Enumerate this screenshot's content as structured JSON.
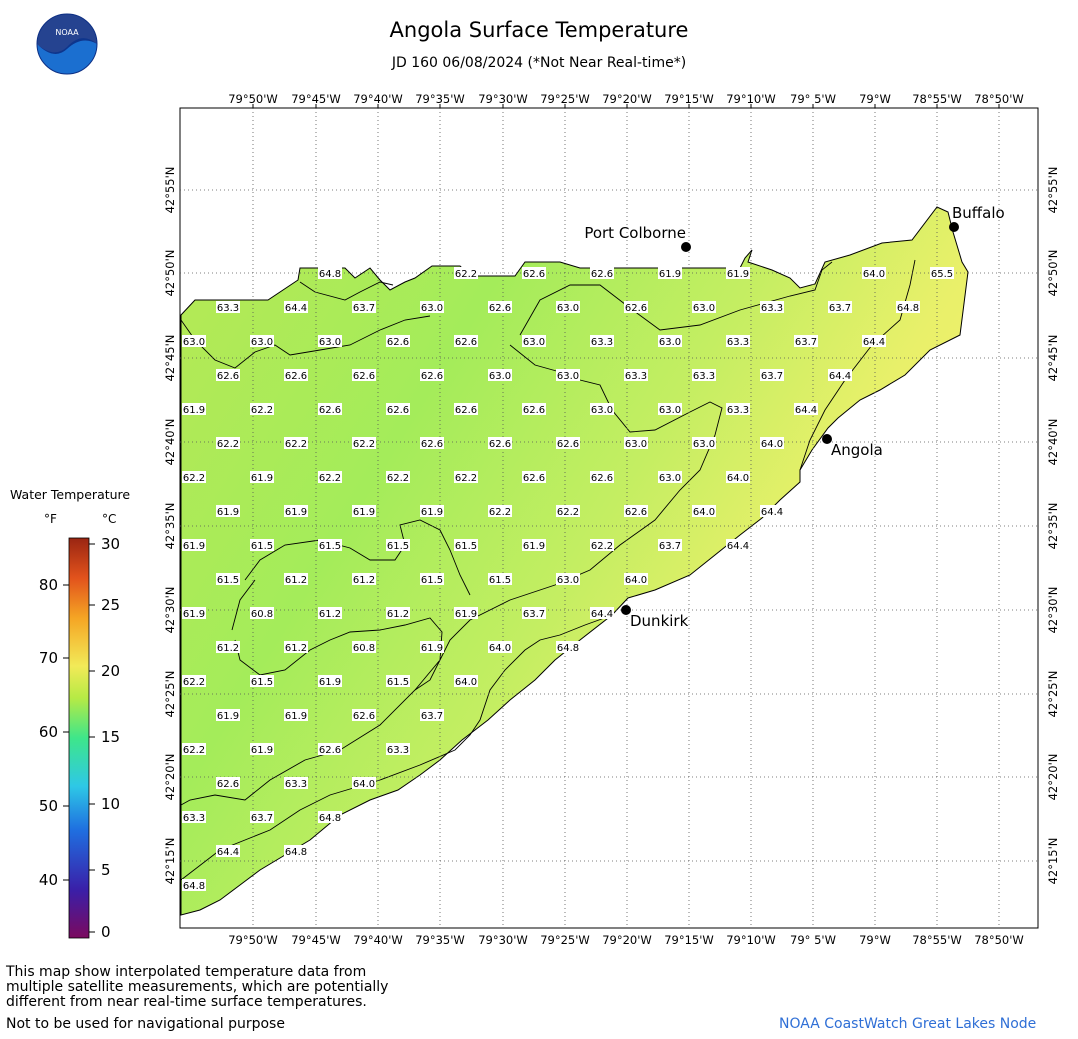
{
  "title": "Angola Surface Temperature",
  "subtitle": "JD 160 06/08/2024 (*Not Near Real-time*)",
  "logo_text": "NOAA",
  "legend": {
    "title": "Water Temperature",
    "unit_f": "°F",
    "unit_c": "°C",
    "f_ticks": [
      "80",
      "70",
      "60",
      "50",
      "40"
    ],
    "c_ticks": [
      "30",
      "25",
      "20",
      "15",
      "10",
      "5",
      "0"
    ],
    "colors": [
      "#7b0a5f",
      "#3a1fa8",
      "#1f6fe0",
      "#2ec8e6",
      "#3ee68a",
      "#b6ea45",
      "#f2ea58",
      "#f5a524",
      "#e2531c",
      "#9a2512"
    ]
  },
  "map": {
    "lon_labels": [
      "79°50'W",
      "79°45'W",
      "79°40'W",
      "79°35'W",
      "79°30'W",
      "79°25'W",
      "79°20'W",
      "79°15'W",
      "79°10'W",
      "79° 5'W",
      "79°W",
      "78°55'W",
      "78°50'W"
    ],
    "lat_labels": [
      "42°55'N",
      "42°50'N",
      "42°45'N",
      "42°40'N",
      "42°35'N",
      "42°30'N",
      "42°25'N",
      "42°20'N",
      "42°15'N"
    ],
    "cities": [
      {
        "name": "Buffalo"
      },
      {
        "name": "Port Colborne"
      },
      {
        "name": "Angola"
      },
      {
        "name": "Dunkirk"
      }
    ],
    "temperature_rows": [
      [
        "64.8",
        "62.2",
        "62.6",
        "62.6",
        "61.9",
        "61.9",
        "64.0",
        "65.5"
      ],
      [
        "63.3",
        "64.4",
        "63.7",
        "63.0",
        "62.6",
        "63.0",
        "62.6",
        "63.0",
        "63.3",
        "63.7",
        "64.8"
      ],
      [
        "63.0",
        "63.0",
        "63.0",
        "62.6",
        "62.6",
        "63.0",
        "63.3",
        "63.0",
        "63.3",
        "63.7",
        "64.4"
      ],
      [
        "62.6",
        "62.6",
        "62.6",
        "62.6",
        "63.0",
        "63.0",
        "63.3",
        "63.3",
        "63.7",
        "64.4"
      ],
      [
        "61.9",
        "62.2",
        "62.6",
        "62.6",
        "62.6",
        "62.6",
        "63.0",
        "63.0",
        "63.3",
        "64.4"
      ],
      [
        "62.2",
        "62.2",
        "62.2",
        "62.6",
        "62.6",
        "62.6",
        "63.0",
        "63.0",
        "64.0"
      ],
      [
        "62.2",
        "61.9",
        "62.2",
        "62.2",
        "62.2",
        "62.6",
        "62.6",
        "63.0",
        "64.0"
      ],
      [
        "61.9",
        "61.9",
        "61.9",
        "61.9",
        "62.2",
        "62.2",
        "62.6",
        "64.0",
        "64.4"
      ],
      [
        "61.9",
        "61.5",
        "61.5",
        "61.5",
        "61.5",
        "61.9",
        "62.2",
        "63.7",
        "64.4"
      ],
      [
        "61.5",
        "61.2",
        "61.2",
        "61.5",
        "61.5",
        "63.0",
        "64.0"
      ],
      [
        "61.9",
        "60.8",
        "61.2",
        "61.2",
        "61.9",
        "63.7",
        "64.4"
      ],
      [
        "61.2",
        "61.2",
        "60.8",
        "61.9",
        "64.0",
        "64.8"
      ],
      [
        "62.2",
        "61.5",
        "61.9",
        "61.5",
        "64.0"
      ],
      [
        "61.9",
        "61.9",
        "62.6",
        "63.7"
      ],
      [
        "62.2",
        "61.9",
        "62.6",
        "63.3"
      ],
      [
        "62.6",
        "63.3",
        "64.0"
      ],
      [
        "63.3",
        "63.7",
        "64.8"
      ],
      [
        "64.4",
        "64.8"
      ],
      [
        "64.8"
      ]
    ]
  },
  "footer": {
    "disclaimer_lines": [
      "This map show interpolated temperature data from",
      "multiple satellite measurements, which are potentially",
      "different from near real-time surface temperatures."
    ],
    "nav_note": "Not to be used for navigational purpose",
    "credit": "NOAA CoastWatch Great Lakes Node"
  }
}
